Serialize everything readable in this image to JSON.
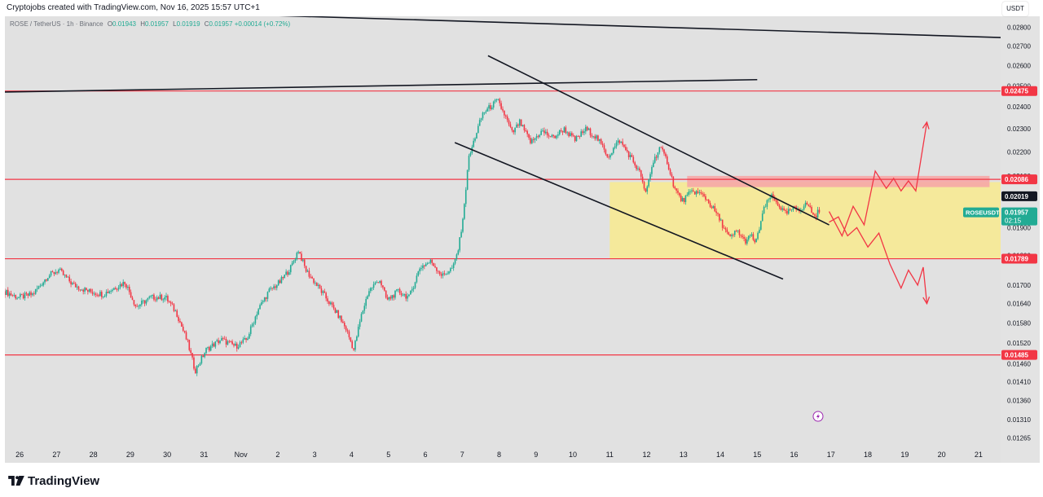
{
  "header": {
    "caption": "Cryptojobs created with TradingView.com, Nov 16, 2025 15:57 UTC+1"
  },
  "legend": {
    "symbol": "ROSE / TetherUS · 1h · Binance",
    "o_label": "O",
    "o": "0.01943",
    "h_label": "H",
    "h": "0.01957",
    "l_label": "L",
    "l": "0.01919",
    "c_label": "C",
    "c": "0.01957",
    "change": "+0.00014 (+0.72%)"
  },
  "quote_currency": "USDT",
  "brand": {
    "name": "TradingView"
  },
  "colors": {
    "up": "#22ab94",
    "down": "#f23645",
    "level": "#f23645",
    "zone": "#f5e99b",
    "supply": "#f6a7a7",
    "trend": "#131722"
  },
  "chart_data": {
    "type": "candlestick",
    "symbol": "ROSEUSDT",
    "timeframe": "1h",
    "y_scale": "log",
    "ylim": [
      0.0124,
      0.0286
    ],
    "y_ticks": [
      "0.02800",
      "0.02700",
      "0.02600",
      "0.02500",
      "0.02400",
      "0.02300",
      "0.02200",
      "0.02100",
      "0.01900",
      "0.01800",
      "0.01700",
      "0.01640",
      "0.01580",
      "0.01520",
      "0.01460",
      "0.01410",
      "0.01360",
      "0.01310",
      "0.01265"
    ],
    "x_ticks": [
      "26",
      "27",
      "28",
      "29",
      "30",
      "31",
      "Nov",
      "2",
      "3",
      "4",
      "5",
      "6",
      "7",
      "8",
      "9",
      "10",
      "11",
      "12",
      "13",
      "14",
      "15",
      "16",
      "17",
      "18",
      "19",
      "20",
      "21"
    ],
    "x_tick_days": [
      26,
      27,
      28,
      29,
      30,
      31,
      32,
      33,
      34,
      35,
      36,
      37,
      38,
      39,
      40,
      41,
      42,
      43,
      44,
      45,
      46,
      47,
      48,
      49,
      50,
      51,
      52
    ],
    "xlim_days": [
      25.6,
      52.6
    ],
    "price_path": [
      [
        25.6,
        0.0168
      ],
      [
        26.0,
        0.0166
      ],
      [
        26.4,
        0.0167
      ],
      [
        26.8,
        0.0173
      ],
      [
        27.1,
        0.0175
      ],
      [
        27.5,
        0.017
      ],
      [
        27.9,
        0.0168
      ],
      [
        28.3,
        0.0167
      ],
      [
        28.6,
        0.0169
      ],
      [
        28.9,
        0.0171
      ],
      [
        29.2,
        0.0163
      ],
      [
        29.6,
        0.0166
      ],
      [
        30.0,
        0.0166
      ],
      [
        30.3,
        0.0161
      ],
      [
        30.6,
        0.0152
      ],
      [
        30.8,
        0.0144
      ],
      [
        31.1,
        0.015
      ],
      [
        31.5,
        0.0153
      ],
      [
        31.9,
        0.0151
      ],
      [
        32.2,
        0.0153
      ],
      [
        32.5,
        0.0162
      ],
      [
        32.8,
        0.0168
      ],
      [
        33.1,
        0.0171
      ],
      [
        33.4,
        0.0176
      ],
      [
        33.6,
        0.0182
      ],
      [
        33.8,
        0.0175
      ],
      [
        34.1,
        0.017
      ],
      [
        34.4,
        0.0165
      ],
      [
        34.7,
        0.016
      ],
      [
        34.9,
        0.0156
      ],
      [
        35.1,
        0.015
      ],
      [
        35.3,
        0.016
      ],
      [
        35.5,
        0.0168
      ],
      [
        35.8,
        0.0172
      ],
      [
        36.0,
        0.0165
      ],
      [
        36.3,
        0.0168
      ],
      [
        36.6,
        0.0166
      ],
      [
        36.9,
        0.0176
      ],
      [
        37.2,
        0.0178
      ],
      [
        37.5,
        0.0173
      ],
      [
        37.8,
        0.0176
      ],
      [
        37.95,
        0.0183
      ],
      [
        38.1,
        0.0198
      ],
      [
        38.2,
        0.0216
      ],
      [
        38.4,
        0.0227
      ],
      [
        38.6,
        0.0237
      ],
      [
        38.8,
        0.024
      ],
      [
        39.0,
        0.0243
      ],
      [
        39.2,
        0.0236
      ],
      [
        39.4,
        0.0228
      ],
      [
        39.6,
        0.0233
      ],
      [
        39.9,
        0.0224
      ],
      [
        40.2,
        0.0229
      ],
      [
        40.5,
        0.0226
      ],
      [
        40.8,
        0.023
      ],
      [
        41.1,
        0.0225
      ],
      [
        41.4,
        0.023
      ],
      [
        41.7,
        0.0226
      ],
      [
        42.0,
        0.0218
      ],
      [
        42.3,
        0.0225
      ],
      [
        42.6,
        0.0218
      ],
      [
        42.9,
        0.021
      ],
      [
        43.0,
        0.0202
      ],
      [
        43.2,
        0.0215
      ],
      [
        43.4,
        0.0222
      ],
      [
        43.6,
        0.0216
      ],
      [
        43.8,
        0.0205
      ],
      [
        44.0,
        0.02
      ],
      [
        44.3,
        0.0204
      ],
      [
        44.6,
        0.0202
      ],
      [
        44.9,
        0.0196
      ],
      [
        45.1,
        0.0191
      ],
      [
        45.3,
        0.0186
      ],
      [
        45.5,
        0.0189
      ],
      [
        45.7,
        0.0185
      ],
      [
        45.9,
        0.0187
      ],
      [
        46.0,
        0.0184
      ],
      [
        46.2,
        0.0196
      ],
      [
        46.4,
        0.0202
      ],
      [
        46.6,
        0.0199
      ],
      [
        46.8,
        0.0195
      ],
      [
        47.0,
        0.0197
      ],
      [
        47.2,
        0.0197
      ],
      [
        47.4,
        0.0199
      ],
      [
        47.6,
        0.0194
      ],
      [
        47.7,
        0.0196
      ]
    ],
    "levels": [
      0.02475,
      0.02086,
      0.01789,
      0.01485
    ],
    "last_price": 0.01957,
    "marker_price": 0.02019,
    "countdown": "02:15",
    "price_labels": [
      {
        "text": "0.02475",
        "value": 0.02475
      },
      {
        "text": "0.02086",
        "value": 0.02086
      },
      {
        "text": "0.02019",
        "value": 0.02019
      },
      {
        "text": "0.01789",
        "value": 0.01789
      },
      {
        "text": "0.01485",
        "value": 0.01485
      }
    ],
    "zone": {
      "from_day": 42.0,
      "to_day": 52.6,
      "low": 0.01789,
      "high": 0.02075
    },
    "supply_zone": {
      "from_day": 44.1,
      "to_day": 52.3,
      "low": 0.02055,
      "high": 0.021
    },
    "trendlines": [
      {
        "from": [
          25.6,
          0.0291
        ],
        "to": [
          52.6,
          0.02745
        ]
      },
      {
        "from": [
          25.6,
          0.0247
        ],
        "to": [
          46.0,
          0.0253
        ]
      },
      {
        "from": [
          38.7,
          0.0265
        ],
        "to": [
          47.95,
          0.0191
        ]
      },
      {
        "from": [
          37.8,
          0.0224
        ],
        "to": [
          46.7,
          0.0172
        ]
      }
    ],
    "scenario_up": [
      [
        47.95,
        0.0196
      ],
      [
        48.3,
        0.0187
      ],
      [
        48.6,
        0.0198
      ],
      [
        48.9,
        0.0191
      ],
      [
        49.2,
        0.0212
      ],
      [
        49.5,
        0.0205
      ],
      [
        49.7,
        0.0209
      ],
      [
        49.9,
        0.0204
      ],
      [
        50.1,
        0.0208
      ],
      [
        50.3,
        0.0204
      ],
      [
        50.6,
        0.0233
      ]
    ],
    "scenario_down": [
      [
        47.95,
        0.0192
      ],
      [
        48.2,
        0.0194
      ],
      [
        48.45,
        0.0187
      ],
      [
        48.7,
        0.019
      ],
      [
        49.0,
        0.0183
      ],
      [
        49.3,
        0.0188
      ],
      [
        49.6,
        0.0177
      ],
      [
        49.9,
        0.0169
      ],
      [
        50.1,
        0.0175
      ],
      [
        50.35,
        0.017
      ],
      [
        50.5,
        0.0176
      ],
      [
        50.6,
        0.0164
      ]
    ]
  }
}
